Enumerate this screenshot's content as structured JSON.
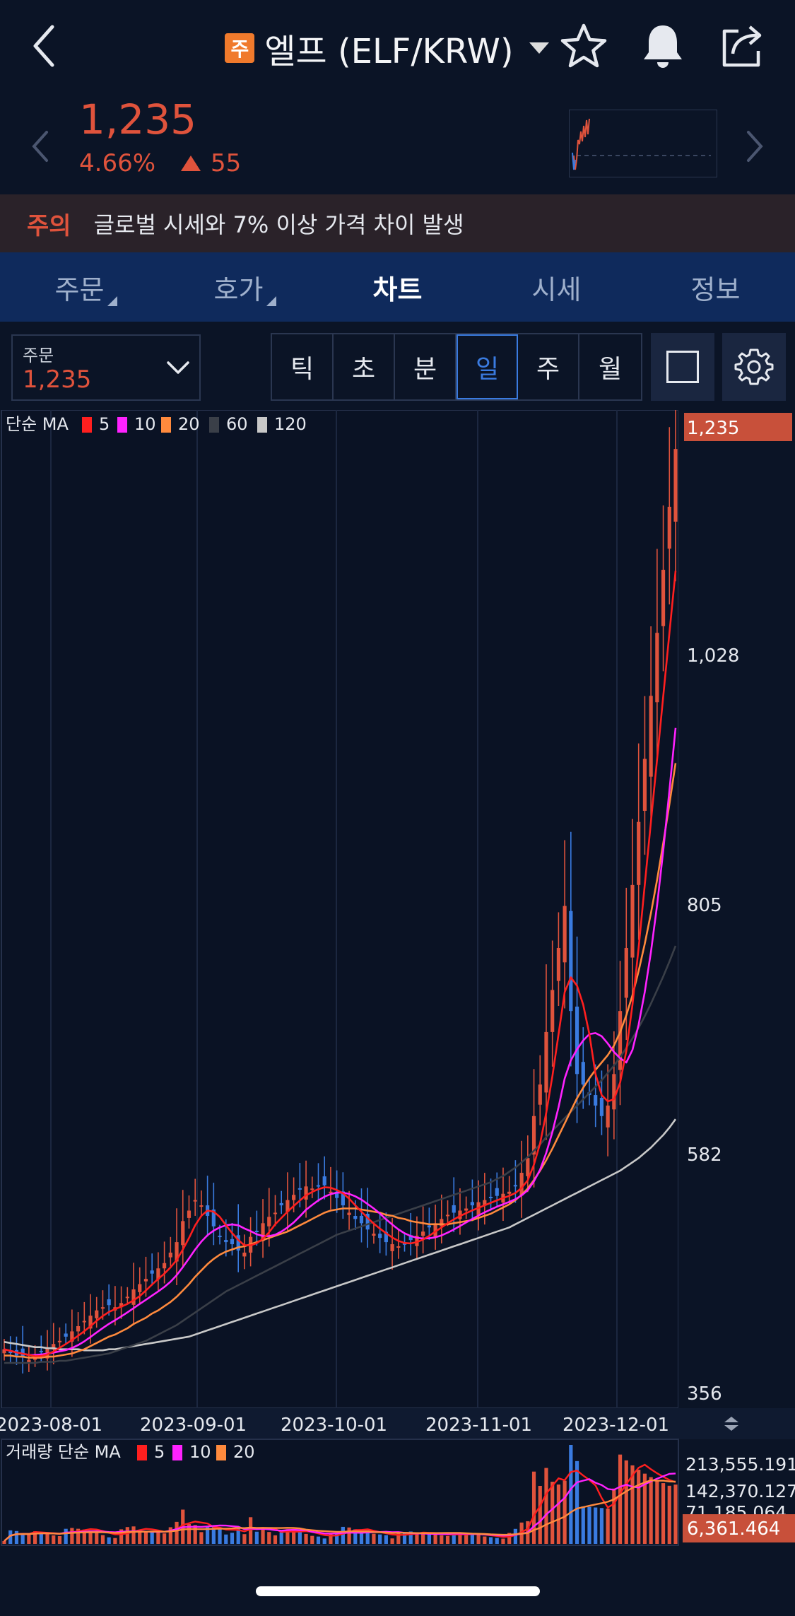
{
  "header": {
    "badge": "주",
    "title": "엘프 (ELF/KRW)",
    "icons": [
      "back-chevron-icon",
      "star-icon",
      "bell-icon",
      "share-icon"
    ]
  },
  "quote": {
    "price": "1,235",
    "change_pct": "4.66%",
    "change_abs": "55"
  },
  "warning": {
    "tag": "주의",
    "text": "글로벌 시세와 7% 이상 가격 차이 발생"
  },
  "tabs": [
    {
      "label": "주문"
    },
    {
      "label": "호가"
    },
    {
      "label": "차트"
    },
    {
      "label": "시세"
    },
    {
      "label": "정보"
    }
  ],
  "controls": {
    "order_label": "주문",
    "order_value": "1,235",
    "periods": [
      "틱",
      "초",
      "분",
      "일",
      "주",
      "월"
    ],
    "selected_period": "일"
  },
  "colors": {
    "up": "#e0533c",
    "down": "#3a7be0",
    "ma5": "#ff1f1f",
    "ma10": "#ff22ff",
    "ma20": "#ff8a3d",
    "ma60": "#3a3f48",
    "ma120": "#c8c8c8"
  },
  "chart_data": {
    "type": "line",
    "legend": {
      "prefix": "단순 MA",
      "entries": [
        "5",
        "10",
        "20",
        "60",
        "120"
      ]
    },
    "price_ticks": [
      "1,028",
      "805",
      "582",
      "356"
    ],
    "price_ylim": [
      356,
      1235
    ],
    "current_price_label": "1,235",
    "x_ticks": [
      "2023-08-01",
      "2023-09-01",
      "2023-10-01",
      "2023-11-01",
      "2023-12-01"
    ],
    "close": [
      378,
      375,
      372,
      370,
      368,
      372,
      376,
      380,
      383,
      386,
      390,
      395,
      400,
      405,
      410,
      415,
      418,
      420,
      418,
      422,
      428,
      435,
      440,
      445,
      450,
      455,
      460,
      470,
      480,
      500,
      510,
      520,
      515,
      505,
      495,
      485,
      480,
      478,
      472,
      470,
      485,
      490,
      498,
      504,
      508,
      515,
      520,
      525,
      530,
      533,
      531,
      533,
      534,
      528,
      522,
      515,
      508,
      502,
      498,
      492,
      488,
      484,
      480,
      478,
      476,
      478,
      482,
      486,
      490,
      494,
      498,
      502,
      506,
      508,
      510,
      512,
      515,
      518,
      520,
      522,
      524,
      526,
      528,
      534,
      546,
      560,
      600,
      630,
      680,
      720,
      760,
      800,
      700,
      640,
      630,
      620,
      610,
      600,
      610,
      640,
      700,
      760,
      820,
      880,
      940,
      1000,
      1060,
      1120,
      1180,
      1235
    ],
    "ma20": [
      372,
      372,
      371,
      371,
      370,
      370,
      370,
      371,
      371,
      372,
      373,
      374,
      376,
      378,
      381,
      384,
      387,
      390,
      392,
      395,
      398,
      402,
      405,
      408,
      412,
      415,
      419,
      423,
      428,
      434,
      440,
      447,
      453,
      459,
      464,
      468,
      471,
      473,
      475,
      476,
      478,
      480,
      482,
      484,
      486,
      488,
      490,
      493,
      496,
      499,
      502,
      505,
      508,
      510,
      511,
      512,
      512,
      512,
      511,
      510,
      509,
      508,
      506,
      505,
      503,
      502,
      500,
      499,
      498,
      497,
      497,
      497,
      497,
      498,
      499,
      500,
      501,
      503,
      505,
      507,
      510,
      513,
      516,
      520,
      525,
      531,
      539,
      548,
      558,
      569,
      581,
      593,
      605,
      617,
      627,
      636,
      644,
      651,
      658,
      667,
      680,
      696,
      715,
      738,
      764,
      793,
      825,
      860,
      897,
      936
    ],
    "ma60": [
      365,
      365,
      365,
      365,
      365,
      365,
      366,
      366,
      366,
      367,
      367,
      368,
      369,
      370,
      371,
      372,
      373,
      374,
      376,
      378,
      380,
      382,
      384,
      386,
      389,
      392,
      395,
      398,
      401,
      405,
      409,
      413,
      417,
      421,
      425,
      429,
      433,
      436,
      439,
      442,
      445,
      448,
      451,
      454,
      457,
      460,
      463,
      466,
      469,
      472,
      475,
      478,
      481,
      484,
      487,
      489,
      491,
      493,
      495,
      497,
      499,
      501,
      503,
      505,
      507,
      509,
      511,
      513,
      515,
      517,
      519,
      521,
      523,
      525,
      527,
      529,
      531,
      533,
      535,
      537,
      540,
      543,
      547,
      551,
      556,
      561,
      567,
      573,
      580,
      586,
      592,
      598,
      604,
      610,
      616,
      622,
      628,
      634,
      641,
      648,
      656,
      665,
      674,
      684,
      695,
      707,
      720,
      733,
      747,
      762
    ],
    "ma120": [
      385,
      384,
      383,
      382,
      381,
      380,
      380,
      379,
      379,
      378,
      378,
      378,
      378,
      377,
      377,
      377,
      377,
      378,
      378,
      379,
      380,
      381,
      382,
      383,
      384,
      385,
      386,
      387,
      388,
      389,
      390,
      392,
      394,
      396,
      398,
      400,
      402,
      404,
      406,
      408,
      410,
      412,
      414,
      416,
      418,
      420,
      422,
      424,
      426,
      428,
      430,
      432,
      434,
      436,
      438,
      440,
      442,
      444,
      446,
      448,
      450,
      452,
      454,
      456,
      458,
      460,
      462,
      464,
      466,
      468,
      470,
      472,
      474,
      476,
      478,
      480,
      482,
      484,
      486,
      488,
      490,
      492,
      494,
      497,
      500,
      503,
      506,
      509,
      512,
      515,
      518,
      521,
      524,
      527,
      530,
      533,
      536,
      539,
      542,
      545,
      548,
      552,
      556,
      560,
      565,
      570,
      576,
      582,
      589,
      597
    ],
    "volume": {
      "legend_prefix": "거래량 단순 MA",
      "legend_entries": [
        "5",
        "10",
        "20"
      ],
      "ticks": [
        "213,555.191",
        "142,370.127",
        "71,185.064"
      ],
      "current_label": "6,361.464",
      "ylim": [
        0,
        213555.191
      ]
    }
  }
}
